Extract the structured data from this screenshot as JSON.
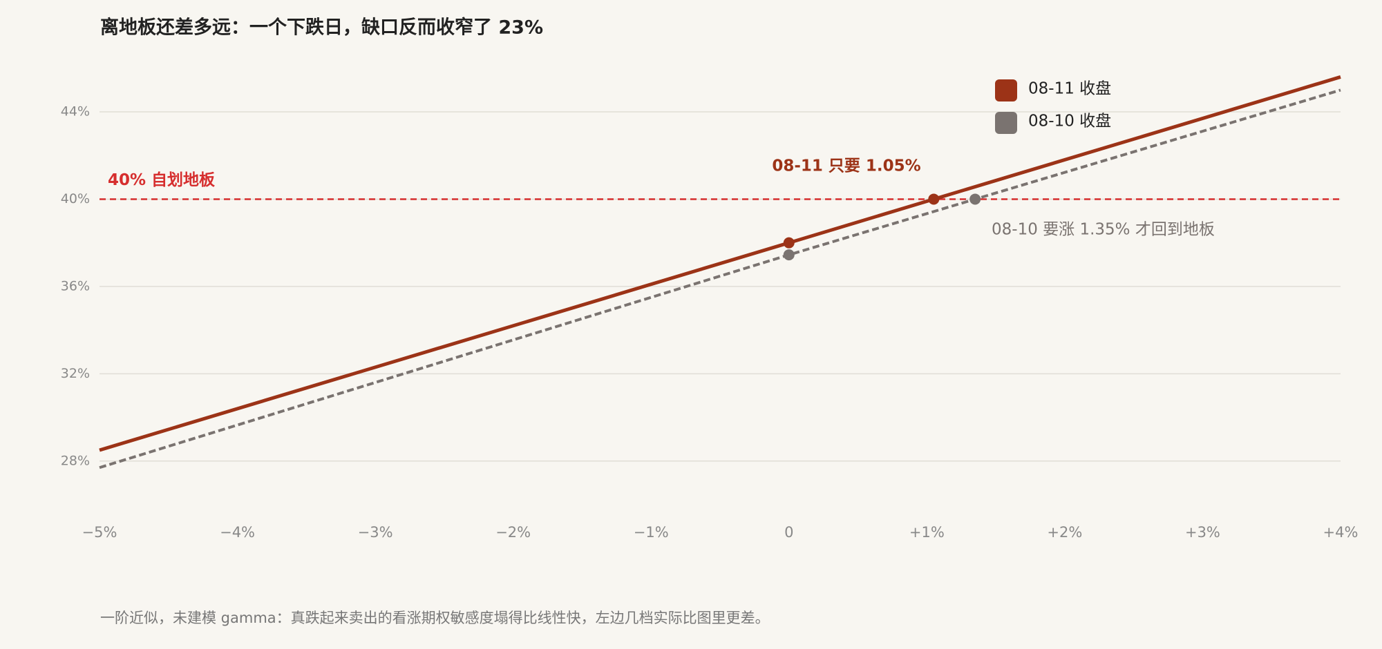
{
  "chart_data": {
    "type": "line",
    "title": "离地板还差多远：一个下跌日，缺口反而收窄了 23%",
    "footnote": "一阶近似，未建模 gamma：真跌起来卖出的看涨期权敏感度塌得比线性快，左边几档实际比图里更差。",
    "series": [
      {
        "name": "08-11 收盘",
        "color": "#9c3317",
        "dashed": false,
        "x": [
          -5,
          0,
          1.05,
          4
        ],
        "values": [
          28.5,
          38.0,
          40.0,
          45.6
        ]
      },
      {
        "name": "08-10 收盘",
        "color": "#7a7370",
        "dashed": true,
        "x": [
          -5,
          0,
          1.35,
          4
        ],
        "values": [
          27.7,
          37.45,
          40.0,
          45.0
        ]
      }
    ],
    "reference_line": {
      "value": 40,
      "label": "40% 自划地板",
      "color": "#d62e2e"
    },
    "annotations": [
      {
        "text": "08-11 只要 1.05%",
        "color": "#9c3317"
      },
      {
        "text": "08-10 要涨 1.35% 才回到地板",
        "color": "#7a7370"
      }
    ],
    "xlim": [
      -5,
      4
    ],
    "xticks": [
      {
        "value": -5,
        "label": "−5%"
      },
      {
        "value": -4,
        "label": "−4%"
      },
      {
        "value": -3,
        "label": "−3%"
      },
      {
        "value": -2,
        "label": "−2%"
      },
      {
        "value": -1,
        "label": "−1%"
      },
      0,
      {
        "value": 1,
        "label": "+1%"
      },
      {
        "value": 2,
        "label": "+2%"
      },
      {
        "value": 3,
        "label": "+3%"
      },
      {
        "value": 4,
        "label": "+4%"
      }
    ],
    "ylim": [
      26,
      46.5
    ],
    "yticks": [
      {
        "value": 28,
        "label": "28%"
      },
      {
        "value": 32,
        "label": "32%"
      },
      {
        "value": 36,
        "label": "36%"
      },
      {
        "value": 40,
        "label": "40%"
      },
      {
        "value": 44,
        "label": "44%"
      }
    ],
    "grid": true,
    "legend": "top-right"
  }
}
